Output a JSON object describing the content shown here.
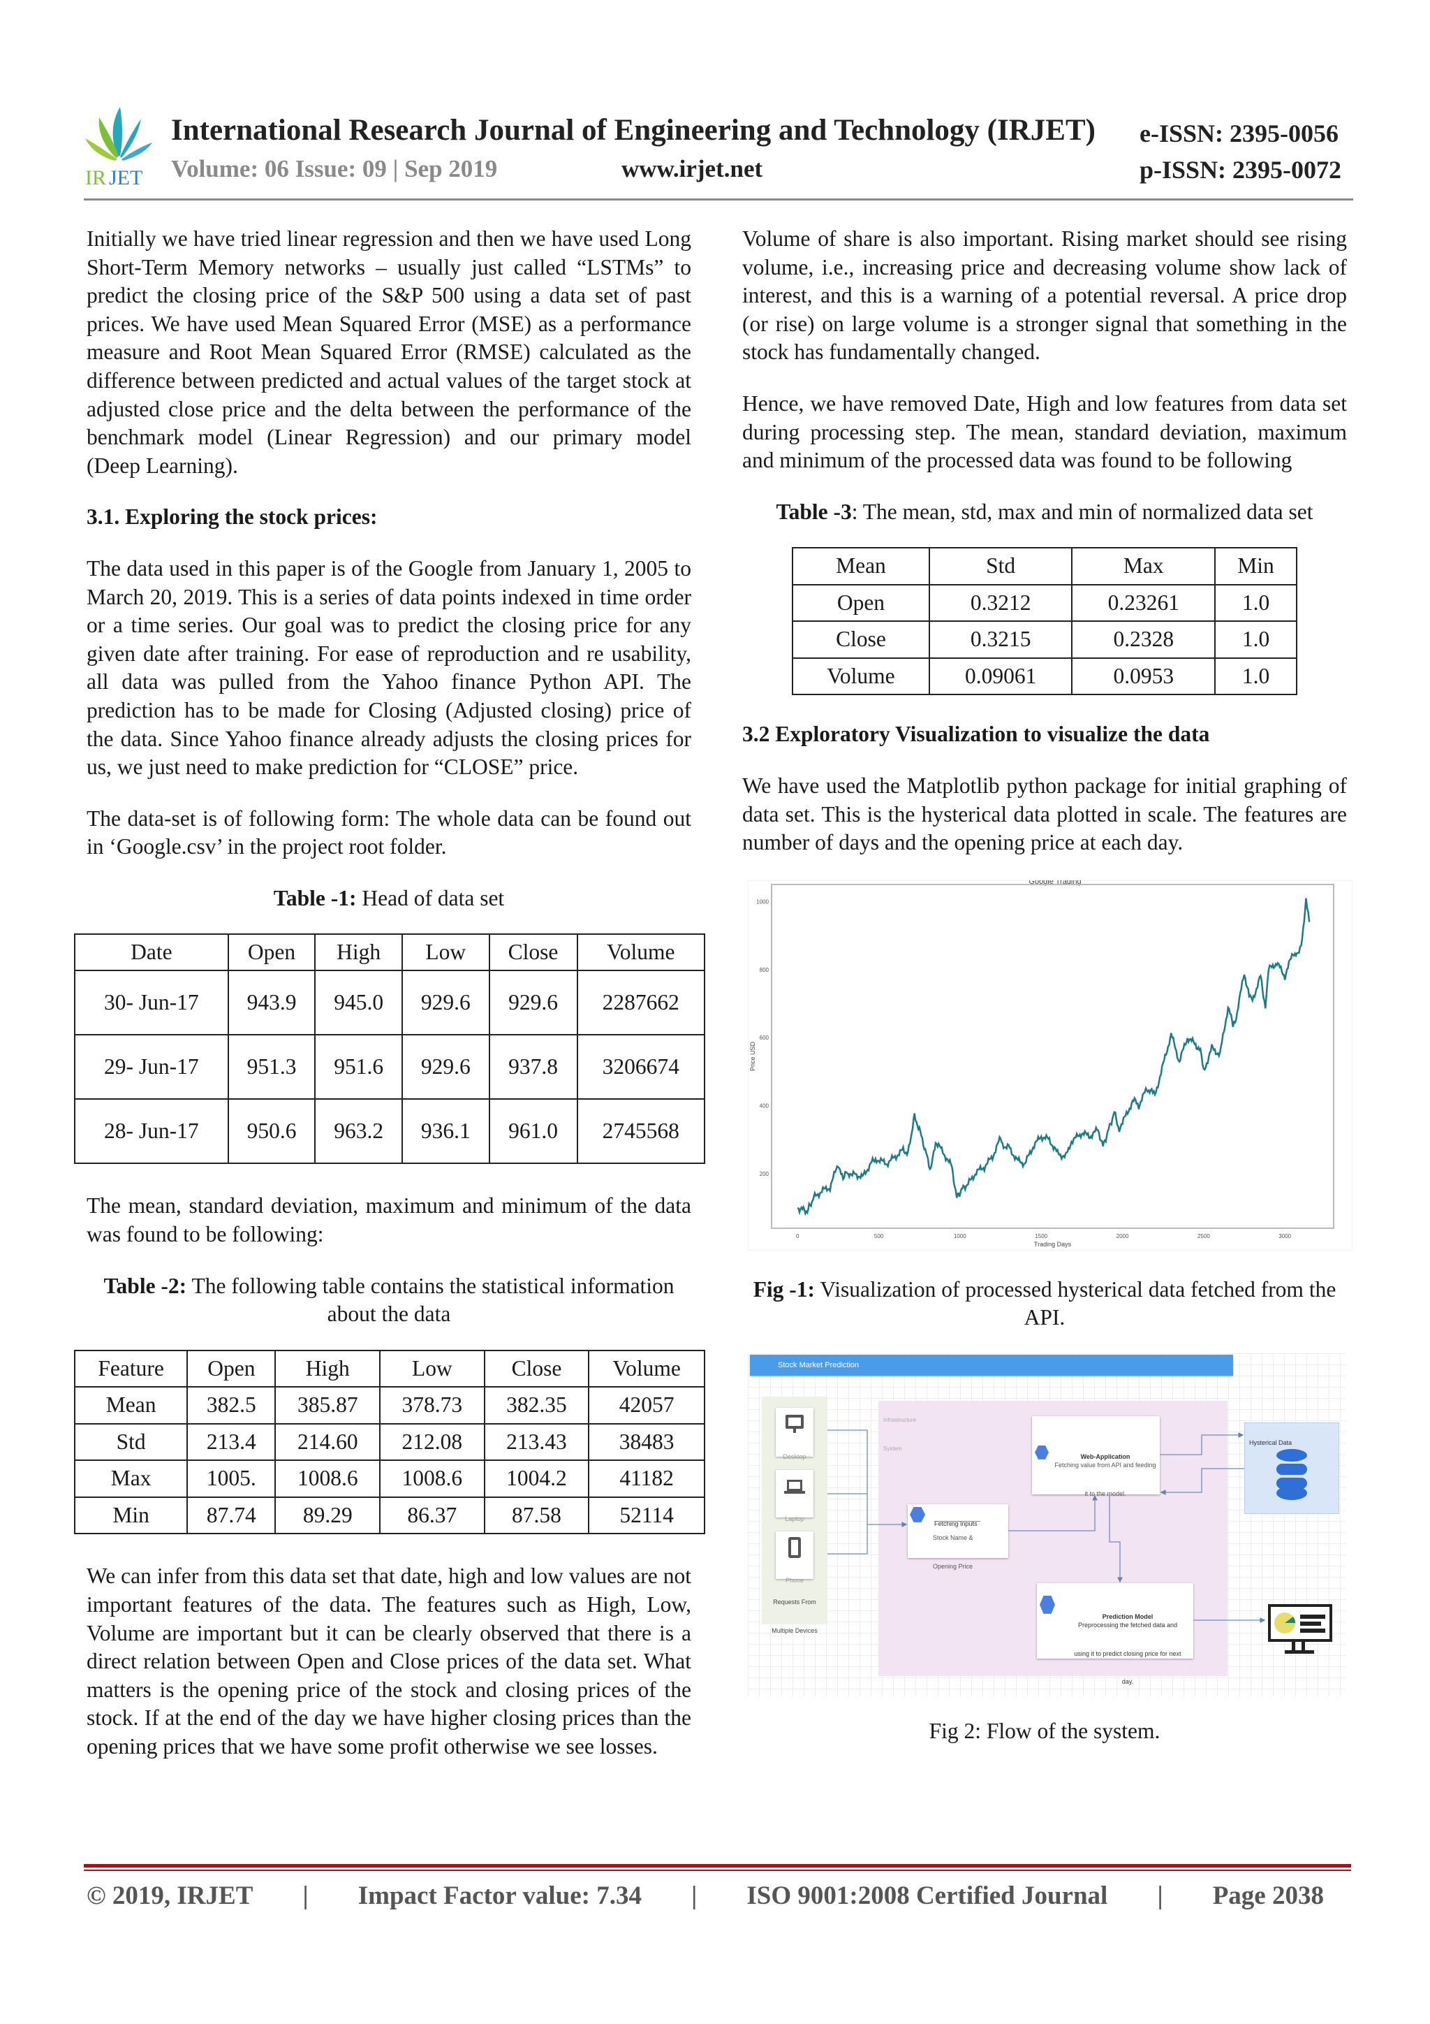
{
  "header": {
    "logo_text": "IRJET",
    "journal_title": "International Research Journal of Engineering and Technology (IRJET)",
    "e_issn": "e-ISSN: 2395-0056",
    "p_issn": "p-ISSN: 2395-0072",
    "volume": "Volume: 06 Issue: 09 | Sep 2019",
    "website": "www.irjet.net"
  },
  "left": {
    "p1": "Initially we have tried linear regression and then we have used Long Short-Term Memory networks – usually just called “LSTMs” to predict the closing price of the S&P 500 using a data set of past prices. We have used Mean Squared Error (MSE) as a performance measure and Root Mean Squared Error (RMSE) calculated as the difference between predicted and actual values of the target stock at adjusted close price and the delta between the performance of the benchmark model (Linear Regression) and our primary model (Deep Learning).",
    "h31": "3.1. Exploring the stock prices:",
    "p2": "The data used in this paper is of the Google from January 1, 2005 to March 20, 2019. This is a series of data points indexed in time order or a time series. Our goal was to predict the closing price for any given date after training. For ease of reproduction and re usability, all data was pulled from the Yahoo finance Python API. The prediction has to be made for Closing (Adjusted closing) price of the data. Since Yahoo finance already adjusts the closing prices for us, we just need to make prediction for “CLOSE” price.",
    "p3": "The data-set is of following form:  The whole data can be found out in ‘Google.csv’ in the project root folder.",
    "t1_label": "Table -1:",
    "t1_caption": " Head of data set",
    "t1": {
      "headers": [
        "Date",
        "Open",
        "High",
        "Low",
        "Close",
        "Volume"
      ],
      "rows": [
        [
          "30- Jun-17",
          "943.9",
          "945.0",
          "929.6",
          "929.6",
          "2287662"
        ],
        [
          "29- Jun-17",
          "951.3",
          "951.6",
          "929.6",
          "937.8",
          "3206674"
        ],
        [
          "28- Jun-17",
          "950.6",
          "963.2",
          "936.1",
          "961.0",
          "2745568"
        ]
      ]
    },
    "p4": "The mean, standard deviation, maximum and minimum of the data was found to be following:",
    "t2_label": "Table -2:",
    "t2_caption": " The following table contains the statistical information about the data",
    "t2": {
      "headers": [
        "Feature",
        "Open",
        "High",
        "Low",
        "Close",
        "Volume"
      ],
      "rows": [
        [
          "Mean",
          "382.5",
          "385.87",
          "378.73",
          "382.35",
          "42057"
        ],
        [
          "Std",
          "213.4",
          "214.60",
          "212.08",
          "213.43",
          "38483"
        ],
        [
          "Max",
          "1005.",
          "1008.6",
          "1008.6",
          "1004.2",
          "41182"
        ],
        [
          "Min",
          "87.74",
          "89.29",
          "86.37",
          "87.58",
          "52114"
        ]
      ]
    },
    "p5": "We can infer from this data set that date, high and low values are not important features of the data. The features such as High, Low, Volume are important but it can be clearly observed that there is a direct relation between Open and Close prices of the data set. What matters is the opening price of the stock and closing prices of the stock. If at the end of the day we have higher closing prices than the opening prices that we have some profit otherwise we see losses."
  },
  "right": {
    "p1": "Volume of share is also important. Rising market should see rising volume, i.e., increasing price and decreasing volume show lack of interest, and this is a warning of a potential reversal. A price drop (or rise) on large volume is a stronger signal that something in the stock has fundamentally changed.",
    "p2": "Hence, we have removed Date, High and low features from data set during processing step. The mean, standard deviation, maximum and minimum of the processed data was found to be following",
    "t3_label": "Table -3",
    "t3_caption": ": The mean, std, max and min of normalized data set",
    "t3": {
      "headers": [
        "Mean",
        "Std",
        "Max",
        "Min"
      ],
      "rows": [
        [
          "Open",
          "0.3212",
          "0.23261",
          "1.0"
        ],
        [
          "Close",
          "0.3215",
          "0.2328",
          "1.0"
        ],
        [
          "Volume",
          "0.09061",
          "0.0953",
          "1.0"
        ]
      ]
    },
    "h32": "3.2 Exploratory Visualization to visualize the data",
    "p3": "We have used the Matplotlib python package for initial graphing of data set. This is the hysterical data plotted in scale. The features are number of days and the opening price at each day.",
    "fig1_label": "Fig -1:",
    "fig1_caption": " Visualization of processed hysterical data fetched from the API.",
    "fig2_caption": "Fig 2: Flow of the system."
  },
  "chart_data": {
    "type": "line",
    "title": "Google Trading",
    "xlabel": "Trading Days",
    "ylabel": "Price USD",
    "xlim": [
      -160,
      3300
    ],
    "ylim": [
      40,
      1050
    ],
    "xticks": [
      "0",
      "500",
      "1000",
      "1500",
      "2000",
      "2500",
      "3000"
    ],
    "yticks": [
      "200",
      "400",
      "600",
      "800",
      "1000"
    ],
    "grid": false,
    "color": "#1f7a86",
    "x": [
      0,
      30,
      60,
      100,
      150,
      200,
      250,
      280,
      300,
      330,
      350,
      400,
      450,
      480,
      500,
      550,
      600,
      650,
      680,
      720,
      750,
      780,
      820,
      850,
      900,
      950,
      980,
      1020,
      1050,
      1100,
      1150,
      1200,
      1250,
      1280,
      1300,
      1350,
      1400,
      1450,
      1500,
      1550,
      1600,
      1650,
      1680,
      1700,
      1750,
      1800,
      1850,
      1880,
      1950,
      1980,
      2000,
      2050,
      2080,
      2100,
      2150,
      2180,
      2200,
      2250,
      2300,
      2350,
      2400,
      2450,
      2480,
      2500,
      2550,
      2600,
      2650,
      2680,
      2700,
      2750,
      2780,
      2800,
      2850,
      2880,
      2900,
      2950,
      3000,
      3050,
      3080,
      3100,
      3130,
      3150
    ],
    "y": [
      100,
      95,
      90,
      130,
      150,
      160,
      230,
      180,
      210,
      190,
      200,
      190,
      230,
      245,
      240,
      230,
      250,
      270,
      260,
      370,
      330,
      280,
      210,
      295,
      260,
      220,
      130,
      160,
      170,
      205,
      220,
      250,
      305,
      270,
      280,
      240,
      230,
      280,
      310,
      300,
      260,
      250,
      290,
      300,
      320,
      310,
      330,
      280,
      380,
      330,
      350,
      400,
      420,
      400,
      450,
      440,
      430,
      520,
      610,
      530,
      600,
      580,
      560,
      500,
      570,
      550,
      690,
      640,
      660,
      790,
      720,
      710,
      780,
      690,
      800,
      820,
      780,
      850,
      840,
      870,
      1000,
      940
    ]
  },
  "diagram": {
    "title": "Stock Market Prediction",
    "devices": [
      "Desktop",
      "Laptop",
      "Phone"
    ],
    "devices_caption": "Requests From Multiple Devices",
    "infra_label": "Infrastructure System",
    "web_app_title": "Web-Application",
    "web_app_desc": "Fetching value from API and feeding it to the model.",
    "fetch_title": "Fetching Inputs",
    "fetch_desc": "Stock Name & Opening Price",
    "model_title": "Prediction Model",
    "model_desc": "Preprocessing the fetched data and using it to predict closing price for next day.",
    "hist_title": "Hysterical Data",
    "accent": "#4a90e2"
  },
  "footer": {
    "copyright": "© 2019, IRJET",
    "sep": "|",
    "impact": "Impact Factor value: 7.34",
    "iso": "ISO 9001:2008 Certified Journal",
    "page": "Page 2038"
  }
}
